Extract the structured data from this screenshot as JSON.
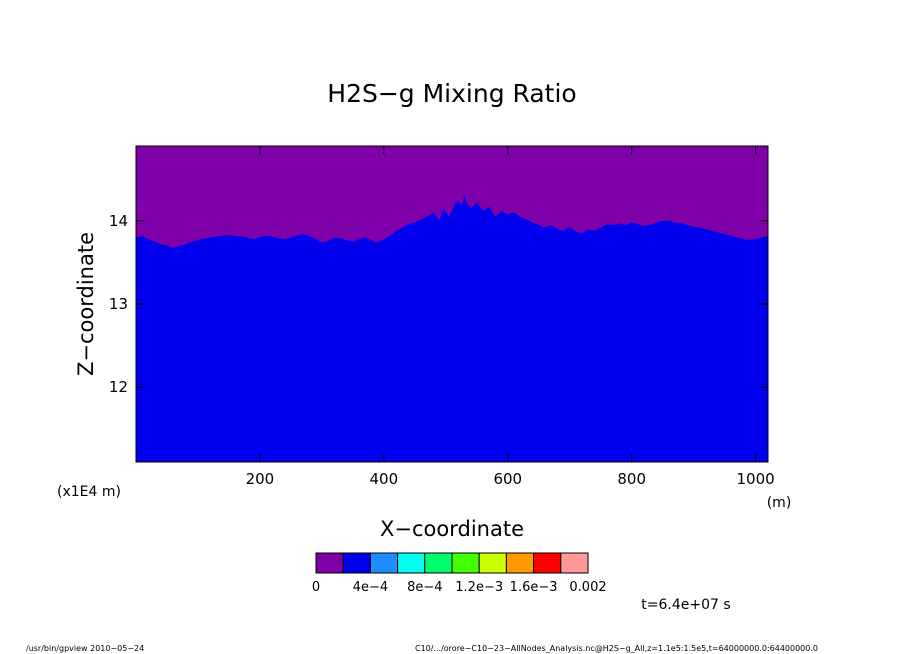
{
  "chart_data": {
    "type": "area",
    "title": "H2S−g Mixing Ratio",
    "xlabel": "X−coordinate",
    "ylabel": "Z−coordinate",
    "x_unit_label": "(m)",
    "y_unit_label": "(x1E4 m)",
    "xlim": [
      0,
      1020
    ],
    "ylim": [
      11.1,
      14.9
    ],
    "x_ticks": [
      200,
      400,
      600,
      800,
      1000
    ],
    "y_ticks": [
      12,
      13,
      14
    ],
    "x_tick_labels": [
      "200",
      "400",
      "600",
      "800",
      "1000"
    ],
    "y_tick_labels": [
      "12",
      "13",
      "14"
    ],
    "grid": false,
    "fill_below_color": "#0000ee",
    "fill_above_color": "#7f00a8",
    "boundary": {
      "x": [
        0,
        10,
        20,
        30,
        40,
        50,
        60,
        70,
        80,
        90,
        100,
        110,
        120,
        130,
        140,
        150,
        160,
        170,
        180,
        190,
        200,
        210,
        220,
        230,
        240,
        250,
        260,
        270,
        280,
        290,
        300,
        310,
        320,
        330,
        340,
        350,
        360,
        370,
        380,
        390,
        400,
        410,
        420,
        430,
        440,
        450,
        460,
        470,
        480,
        490,
        495,
        500,
        505,
        510,
        515,
        520,
        525,
        530,
        535,
        540,
        550,
        560,
        570,
        580,
        590,
        600,
        610,
        620,
        630,
        640,
        650,
        660,
        670,
        680,
        690,
        700,
        710,
        720,
        730,
        740,
        750,
        760,
        770,
        780,
        790,
        800,
        810,
        820,
        830,
        840,
        850,
        860,
        870,
        880,
        890,
        900,
        910,
        920,
        930,
        940,
        950,
        960,
        970,
        980,
        990,
        1000,
        1010,
        1020
      ],
      "z": [
        13.8,
        13.82,
        13.78,
        13.75,
        13.72,
        13.7,
        13.68,
        13.7,
        13.72,
        13.75,
        13.77,
        13.79,
        13.8,
        13.81,
        13.82,
        13.83,
        13.82,
        13.81,
        13.8,
        13.78,
        13.8,
        13.82,
        13.81,
        13.79,
        13.78,
        13.8,
        13.83,
        13.84,
        13.82,
        13.78,
        13.74,
        13.76,
        13.8,
        13.79,
        13.77,
        13.75,
        13.78,
        13.8,
        13.77,
        13.74,
        13.78,
        13.82,
        13.88,
        13.92,
        13.96,
        13.98,
        14.02,
        14.05,
        14.1,
        14.0,
        14.15,
        14.1,
        14.05,
        14.12,
        14.2,
        14.25,
        14.18,
        14.3,
        14.2,
        14.15,
        14.22,
        14.12,
        14.17,
        14.05,
        14.12,
        14.08,
        14.1,
        14.05,
        14.02,
        13.98,
        13.95,
        13.92,
        13.95,
        13.9,
        13.88,
        13.93,
        13.87,
        13.85,
        13.9,
        13.88,
        13.92,
        13.96,
        13.95,
        13.97,
        13.95,
        13.98,
        13.96,
        13.94,
        13.95,
        13.98,
        14.0,
        14.0,
        13.98,
        13.97,
        13.95,
        13.93,
        13.92,
        13.9,
        13.88,
        13.86,
        13.84,
        13.82,
        13.8,
        13.78,
        13.77,
        13.78,
        13.8,
        13.82
      ]
    },
    "colorbar": {
      "colors": [
        "#7f00a8",
        "#0000ee",
        "#1e8eff",
        "#00ffee",
        "#00ff70",
        "#44ff00",
        "#ccff00",
        "#ff9900",
        "#ff0000",
        "#ff9999"
      ],
      "labels": [
        "0",
        "4e−4",
        "8e−4",
        "1.2e−3",
        "1.6e−3",
        "0.002"
      ]
    },
    "time_label": "t=6.4e+07 s"
  },
  "footer": {
    "left": "/usr/bin/gpview  2010−05−24",
    "right": "C10/.../orore−C10−23−AllNodes_Analysis.nc@H2S−g_All,z=1.1e5:1.5e5,t=64000000.0:64400000.0"
  }
}
